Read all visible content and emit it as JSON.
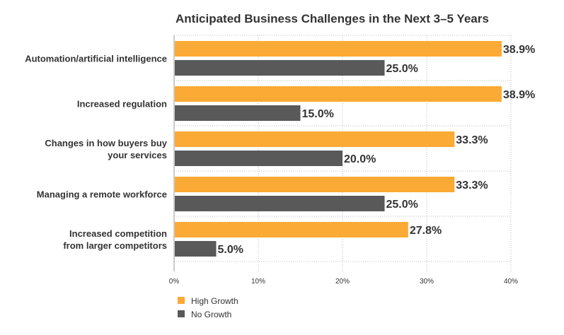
{
  "chart_data": {
    "type": "bar",
    "orientation": "horizontal",
    "title": "Anticipated Business Challenges in the Next 3–5 Years",
    "categories": [
      "Automation/artificial intelligence",
      "Increased regulation",
      "Changes in how buyers buy your services",
      "Managing a remote workforce",
      "Increased competition from larger competitors"
    ],
    "category_lines": [
      [
        "Automation/artificial intelligence"
      ],
      [
        "Increased regulation"
      ],
      [
        "Changes in how buyers buy",
        "your services"
      ],
      [
        "Managing a remote workforce"
      ],
      [
        "Increased competition",
        "from larger competitors"
      ]
    ],
    "series": [
      {
        "name": "High Growth",
        "values": [
          38.9,
          38.9,
          33.3,
          33.3,
          27.8
        ],
        "labels": [
          "38.9%",
          "38.9%",
          "33.3%",
          "33.3%",
          "27.8%"
        ],
        "color": "#FBAA35"
      },
      {
        "name": "No Growth",
        "values": [
          25.0,
          15.0,
          20.0,
          25.0,
          5.0
        ],
        "labels": [
          "25.0%",
          "15.0%",
          "20.0%",
          "25.0%",
          "5.0%"
        ],
        "color": "#595959"
      }
    ],
    "xlim": [
      0,
      40
    ],
    "xticks": [
      0,
      10,
      20,
      30,
      40
    ],
    "xtick_labels": [
      "0%",
      "10%",
      "20%",
      "30%",
      "40%"
    ],
    "grid": true,
    "legend_position": "bottom-left",
    "colors": {
      "text": "#333333",
      "grid": "#bbbbbb"
    }
  }
}
